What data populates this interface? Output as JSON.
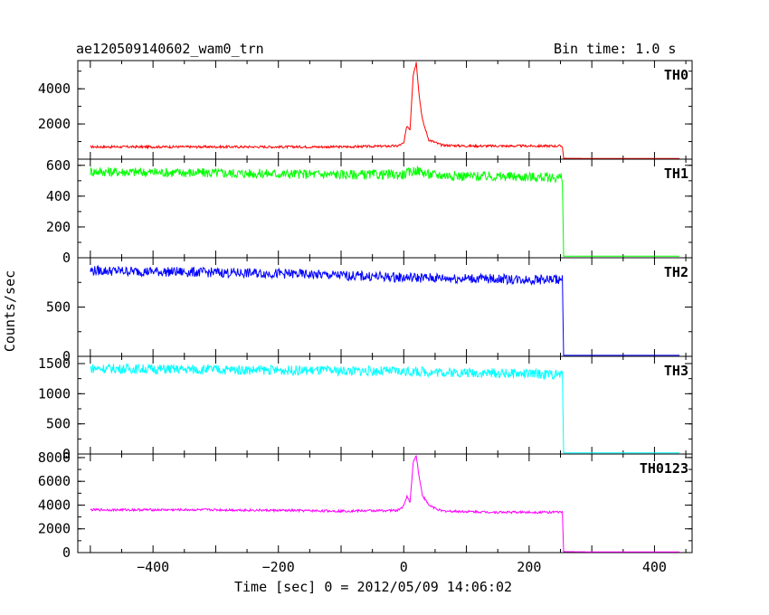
{
  "header": {
    "title": "ae120509140602_wam0_trn",
    "bin_time": "Bin time: 1.0 s"
  },
  "chart_data": {
    "type": "line",
    "title": "ae120509140602_wam0_trn",
    "xlabel": "Time [sec] 0 = 2012/05/09 14:06:02",
    "ylabel": "Counts/sec",
    "xlim": [
      -520,
      460
    ],
    "x_ticks": [
      -400,
      -200,
      0,
      200,
      400
    ],
    "panels": [
      {
        "name": "TH0",
        "color": "#ff0000",
        "ylim": [
          0,
          5600
        ],
        "y_ticks": [
          0,
          2000,
          4000
        ],
        "y_tick_labels": [
          "",
          "2000",
          "4000"
        ],
        "series": [
          {
            "name": "TH0",
            "x": [
              -500,
              -400,
              -300,
              -200,
              -100,
              -10,
              0,
              5,
              10,
              15,
              20,
              25,
              30,
              40,
              60,
              100,
              150,
              200,
              253,
              255,
              300,
              350,
              400,
              440
            ],
            "y": [
              700,
              700,
              700,
              700,
              700,
              750,
              900,
              1900,
              1700,
              4800,
              5500,
              3500,
              2200,
              1100,
              800,
              750,
              750,
              750,
              750,
              50,
              40,
              40,
              40,
              40
            ]
          }
        ]
      },
      {
        "name": "TH1",
        "color": "#00ff00",
        "ylim": [
          0,
          640
        ],
        "y_ticks": [
          0,
          200,
          400,
          600
        ],
        "y_tick_labels": [
          "0",
          "200",
          "400",
          "600"
        ],
        "series": [
          {
            "name": "TH1",
            "x": [
              -500,
              -400,
              -300,
              -200,
              -100,
              0,
              20,
              40,
              100,
              200,
              253,
              255,
              300,
              350,
              400,
              440
            ],
            "y": [
              560,
              555,
              550,
              545,
              540,
              540,
              570,
              540,
              530,
              525,
              520,
              10,
              10,
              10,
              10,
              10
            ]
          }
        ]
      },
      {
        "name": "TH2",
        "color": "#0000ff",
        "ylim": [
          0,
          1000
        ],
        "y_ticks": [
          0,
          500
        ],
        "y_tick_labels": [
          "0",
          "500"
        ],
        "series": [
          {
            "name": "TH2",
            "x": [
              -500,
              -400,
              -300,
              -200,
              -100,
              0,
              100,
              200,
              253,
              255,
              300,
              350,
              400,
              440
            ],
            "y": [
              870,
              860,
              850,
              840,
              820,
              800,
              790,
              780,
              780,
              10,
              10,
              10,
              10,
              10
            ]
          }
        ]
      },
      {
        "name": "TH3",
        "color": "#00ffff",
        "ylim": [
          0,
          1620
        ],
        "y_ticks": [
          0,
          500,
          1000,
          1500
        ],
        "y_tick_labels": [
          "0",
          "500",
          "1000",
          "1500"
        ],
        "series": [
          {
            "name": "TH3",
            "x": [
              -500,
              -400,
              -300,
              -200,
              -100,
              0,
              100,
              200,
              253,
              255,
              300,
              350,
              400,
              440
            ],
            "y": [
              1420,
              1410,
              1400,
              1390,
              1380,
              1370,
              1350,
              1330,
              1320,
              20,
              20,
              20,
              20,
              20
            ]
          }
        ]
      },
      {
        "name": "TH0123",
        "color": "#ff00ff",
        "ylim": [
          0,
          8300
        ],
        "y_ticks": [
          0,
          2000,
          4000,
          6000,
          8000
        ],
        "y_tick_labels": [
          "0",
          "2000",
          "4000",
          "6000",
          "8000"
        ],
        "series": [
          {
            "name": "TH0123",
            "x": [
              -500,
              -400,
              -300,
              -200,
              -100,
              -10,
              0,
              5,
              10,
              15,
              20,
              25,
              30,
              40,
              60,
              100,
              150,
              200,
              253,
              255,
              300,
              350,
              400,
              440
            ],
            "y": [
              3600,
              3600,
              3600,
              3550,
              3500,
              3550,
              3900,
              4800,
              4200,
              7600,
              8200,
              6200,
              4800,
              4000,
              3500,
              3450,
              3400,
              3400,
              3400,
              80,
              60,
              60,
              60,
              60
            ]
          }
        ]
      }
    ]
  }
}
